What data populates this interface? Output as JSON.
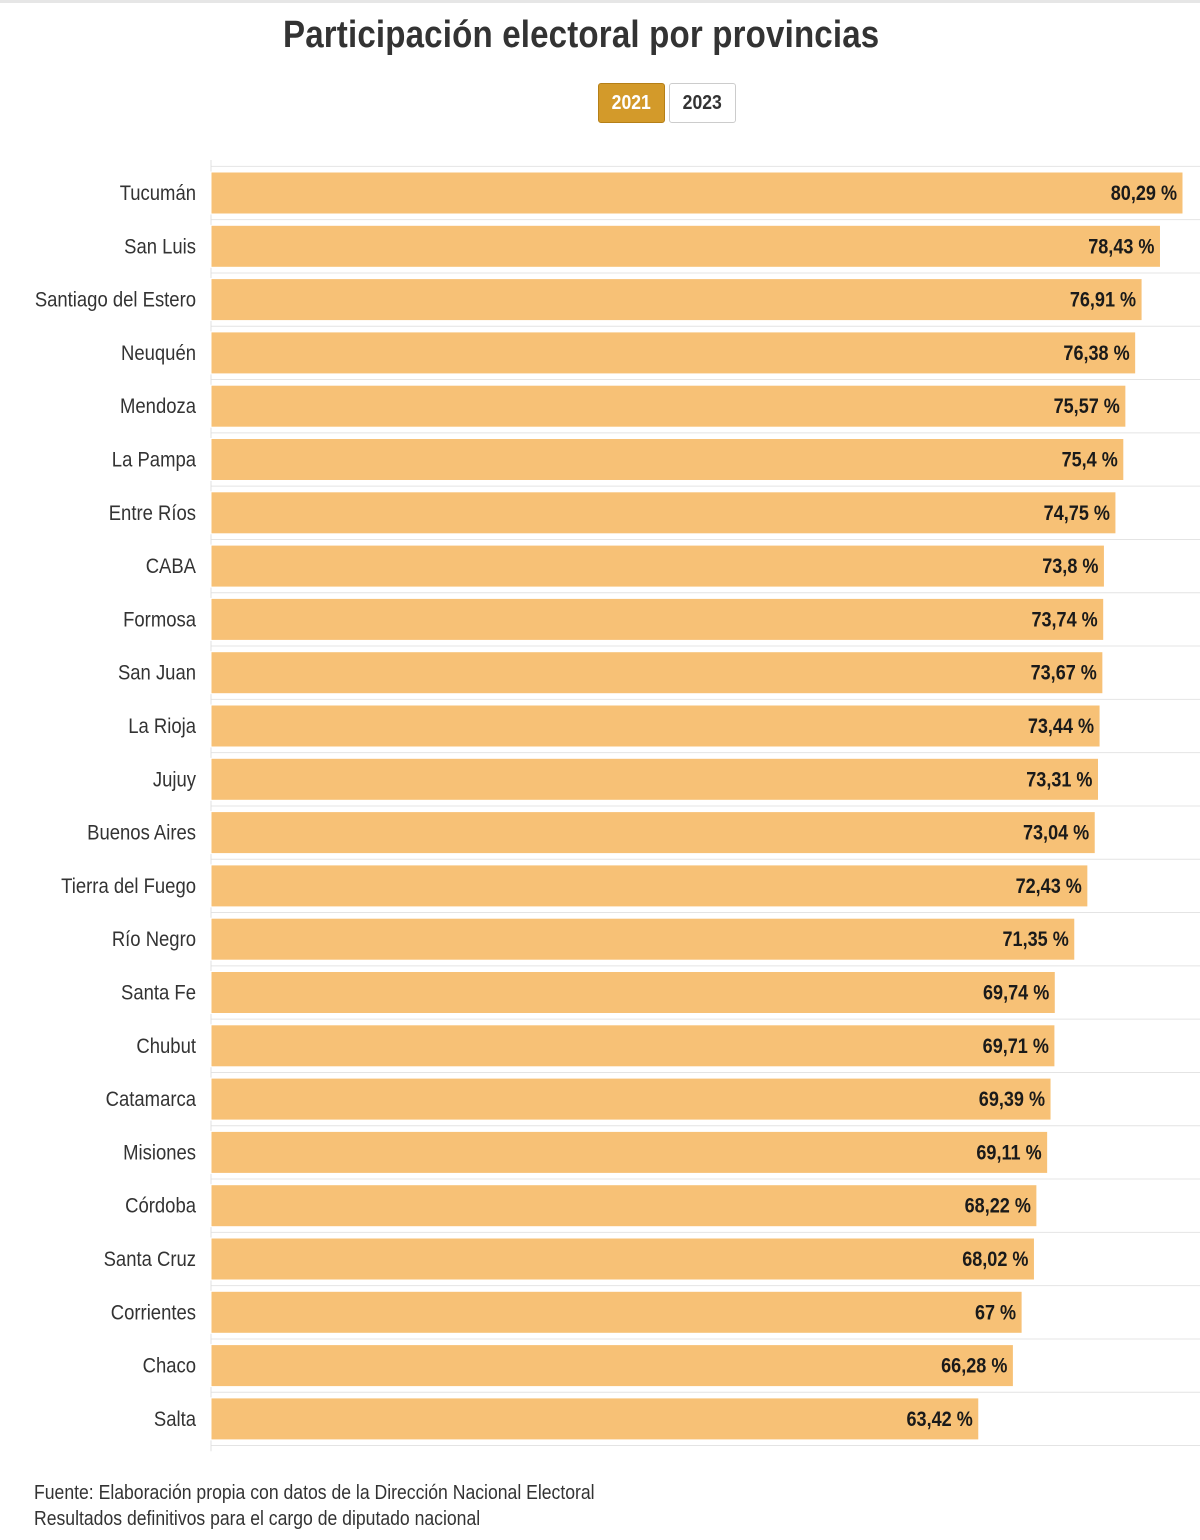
{
  "title": "Participación electoral por provincias",
  "tabs": [
    {
      "label": "2021",
      "active": true
    },
    {
      "label": "2023",
      "active": false
    }
  ],
  "colors": {
    "bar": "#f7c176",
    "bar_edge": "#ffffff",
    "tab_active": "#d39a2a",
    "grid": "#e4e4e4",
    "text": "#333333"
  },
  "chart_data": {
    "type": "bar",
    "orientation": "horizontal",
    "title": "Participación electoral por provincias",
    "categories": [
      "Tucumán",
      "San Luis",
      "Santiago del Estero",
      "Neuquén",
      "Mendoza",
      "La Pampa",
      "Entre Ríos",
      "CABA",
      "Formosa",
      "San Juan",
      "La Rioja",
      "Jujuy",
      "Buenos Aires",
      "Tierra del Fuego",
      "Río Negro",
      "Santa Fe",
      "Chubut",
      "Catamarca",
      "Misiones",
      "Córdoba",
      "Santa Cruz",
      "Corrientes",
      "Chaco",
      "Salta"
    ],
    "values": [
      80.29,
      78.43,
      76.91,
      76.38,
      75.57,
      75.4,
      74.75,
      73.8,
      73.74,
      73.67,
      73.44,
      73.31,
      73.04,
      72.43,
      71.35,
      69.74,
      69.71,
      69.39,
      69.11,
      68.22,
      68.02,
      67,
      66.28,
      63.42
    ],
    "data_labels": [
      "80,29 %",
      "78,43 %",
      "76,91 %",
      "76,38 %",
      "75,57 %",
      "75,4 %",
      "74,75 %",
      "73,8 %",
      "73,74 %",
      "73,67 %",
      "73,44 %",
      "73,31 %",
      "73,04 %",
      "72,43 %",
      "71,35 %",
      "69,74 %",
      "69,71 %",
      "69,39 %",
      "69,11 %",
      "68,22 %",
      "68,02 %",
      "67 %",
      "66,28 %",
      "63,42 %"
    ],
    "xlim": [
      0,
      80.29
    ],
    "xlabel": "",
    "ylabel": "",
    "grid": true
  },
  "footer": {
    "source": "Fuente: Elaboración propia con datos de la Dirección Nacional Electoral",
    "note": "Resultados definitivos para el cargo de diputado nacional"
  }
}
